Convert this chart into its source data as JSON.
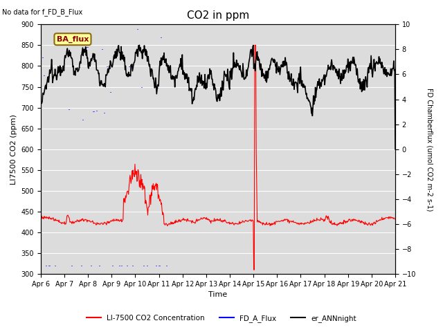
{
  "title": "CO2 in ppm",
  "top_left_note": "No data for f_FD_B_Flux",
  "legend_box_label": "BA_flux",
  "ylabel_left": "LI7500 CO2 (ppm)",
  "ylabel_right": "FD Chamberflux (umol CO2 m-2 s-1)",
  "xlabel": "Time",
  "ylim_left": [
    300,
    900
  ],
  "ylim_right": [
    -10,
    10
  ],
  "xtick_labels": [
    "Apr 6",
    "Apr 7",
    "Apr 8",
    "Apr 9",
    "Apr 10",
    "Apr 11",
    "Apr 12",
    "Apr 13",
    "Apr 14",
    "Apr 15",
    "Apr 16",
    "Apr 17",
    "Apr 18",
    "Apr 19",
    "Apr 20",
    "Apr 21"
  ],
  "yticks_left": [
    300,
    350,
    400,
    450,
    500,
    550,
    600,
    650,
    700,
    750,
    800,
    850,
    900
  ],
  "yticks_right": [
    -10,
    -8,
    -6,
    -4,
    -2,
    0,
    2,
    4,
    6,
    8,
    10
  ],
  "color_red": "#ff0000",
  "color_blue": "#0000ff",
  "color_black": "#000000",
  "bg_color": "#dcdcdc",
  "legend_box_facecolor": "#ffff99",
  "legend_box_edgecolor": "#8b6914"
}
